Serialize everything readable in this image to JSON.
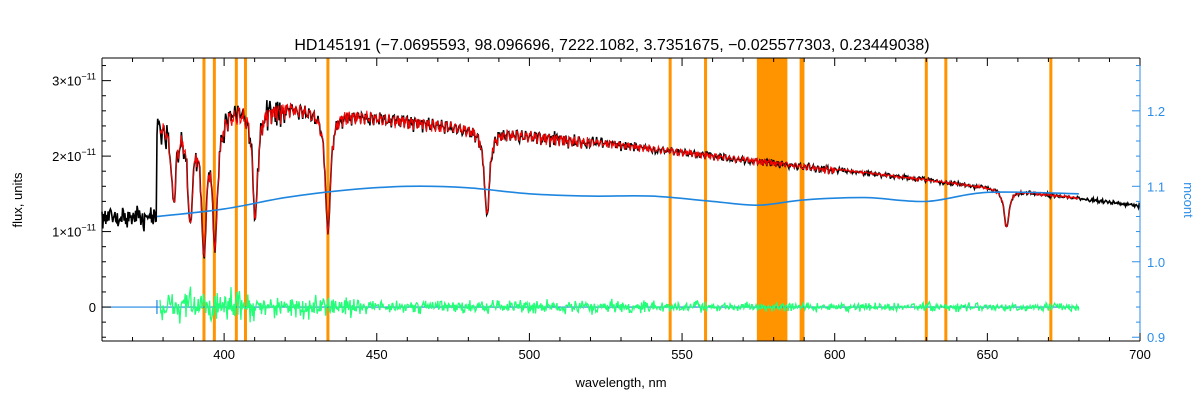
{
  "chart_data": {
    "type": "line",
    "title": "HD145191    (−7.0695593, 98.096696, 7222.1082, 3.7351675, −0.025577303, 0.23449038)",
    "xlabel": "wavelength, nm",
    "ylabel": "flux, units",
    "y2label": "mcont",
    "xlim": [
      360,
      700
    ],
    "ylim": [
      -4.5e-12,
      3.3e-11
    ],
    "y2lim": [
      0.895,
      1.27
    ],
    "x_ticks": [
      400,
      450,
      500,
      550,
      600,
      650,
      700
    ],
    "x_tick_labels": [
      "400",
      "450",
      "500",
      "550",
      "600",
      "650",
      "700"
    ],
    "y_ticks": [
      {
        "value": 0,
        "base": "0",
        "exp": ""
      },
      {
        "value": 1e-11,
        "base": "1×10",
        "exp": "−11"
      },
      {
        "value": 2e-11,
        "base": "2×10",
        "exp": "−11"
      },
      {
        "value": 3e-11,
        "base": "3×10",
        "exp": "−11"
      }
    ],
    "y2_ticks": [
      0.9,
      1.0,
      1.1,
      1.2
    ],
    "y2_tick_labels": [
      "0.9",
      "1.0",
      "1.1",
      "1.2"
    ],
    "colors": {
      "observed": "#000000",
      "model": "#ff0000",
      "continuum": "#1f86e0",
      "residuals": "#22ff77",
      "masks": "#ff9400",
      "right_axis": "#2c8ee8"
    },
    "masked_lines_nm": [
      393.4,
      396.8,
      404.0,
      407.0,
      434.0,
      546.1,
      557.7,
      630.0,
      636.4,
      670.8,
      589.0,
      589.6
    ],
    "masked_band_nm": [
      574.5,
      584.5
    ],
    "absorption_lines_nm": [
      {
        "x": 383.5,
        "depth": 0.42
      },
      {
        "x": 388.9,
        "depth": 0.55
      },
      {
        "x": 393.4,
        "depth": 0.72
      },
      {
        "x": 397.0,
        "depth": 0.68
      },
      {
        "x": 410.2,
        "depth": 0.55
      },
      {
        "x": 434.0,
        "depth": 0.62
      },
      {
        "x": 486.1,
        "depth": 0.48
      },
      {
        "x": 656.3,
        "depth": 0.32
      }
    ],
    "continuum_mcont": {
      "x": [
        378,
        400,
        420,
        440,
        460,
        480,
        500,
        520,
        540,
        560,
        575,
        590,
        610,
        630,
        650,
        680
      ],
      "y": [
        1.06,
        1.07,
        1.085,
        1.095,
        1.1,
        1.098,
        1.09,
        1.087,
        1.087,
        1.08,
        1.075,
        1.082,
        1.085,
        1.08,
        1.092,
        1.09
      ]
    }
  }
}
